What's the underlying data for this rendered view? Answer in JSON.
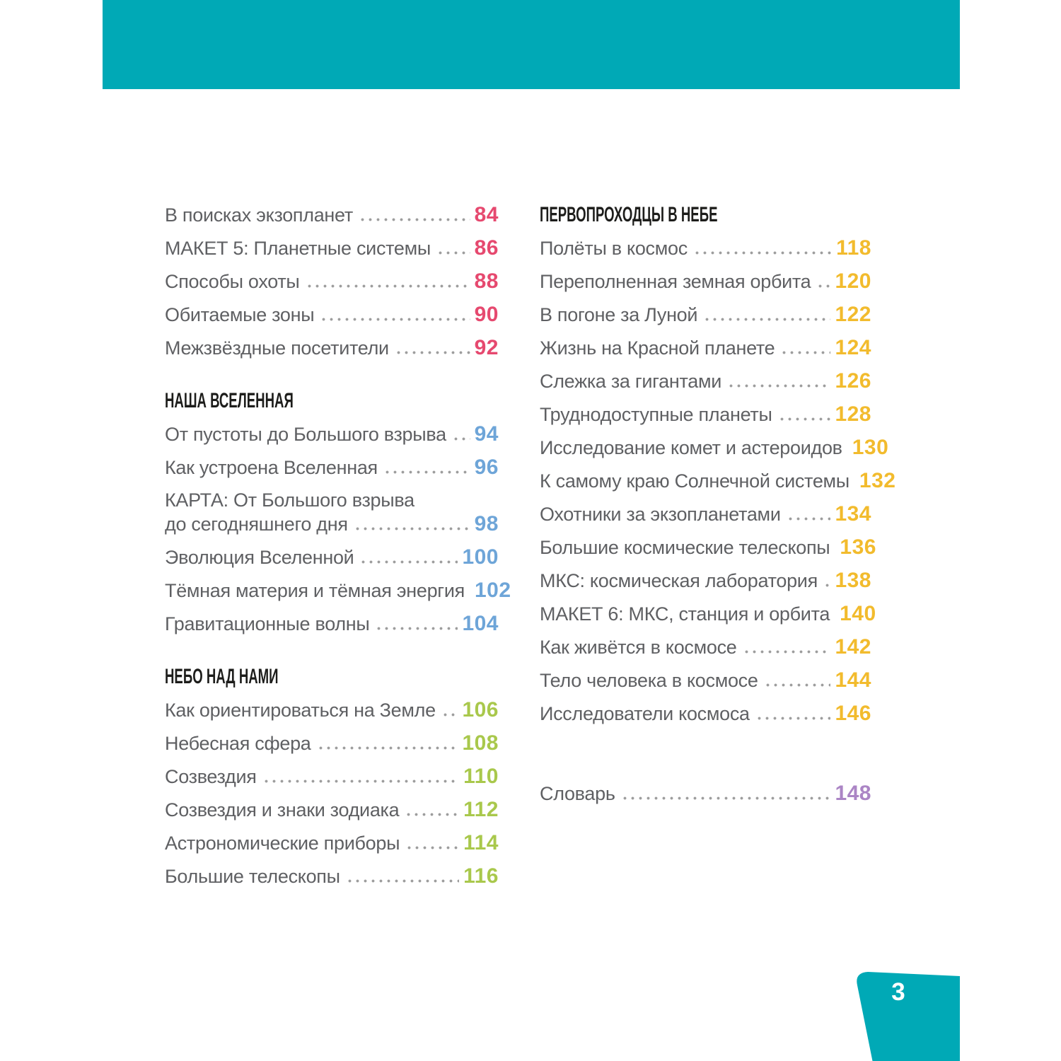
{
  "header": {
    "color": "#00a9b6"
  },
  "footer": {
    "page_number": "3",
    "tab_color": "#00a9b6"
  },
  "toc": {
    "columns": [
      {
        "blocks": [
          {
            "type": "entries",
            "color": "#e6496f",
            "items": [
              {
                "lines": [
                  "В поисках экзопланет"
                ],
                "page": "84"
              },
              {
                "lines": [
                  "МАКЕТ 5: Планетные системы"
                ],
                "page": "86"
              },
              {
                "lines": [
                  "Способы охоты"
                ],
                "page": "88"
              },
              {
                "lines": [
                  "Обитаемые зоны"
                ],
                "page": "90"
              },
              {
                "lines": [
                  "Межзвёздные посетители"
                ],
                "page": "92"
              }
            ]
          },
          {
            "type": "heading",
            "text": "НАША ВСЕЛЕННАЯ"
          },
          {
            "type": "entries",
            "color": "#6ea5d8",
            "items": [
              {
                "lines": [
                  "От пустоты до Большого взрыва"
                ],
                "page": "94"
              },
              {
                "lines": [
                  "Как устроена Вселенная"
                ],
                "page": "96"
              },
              {
                "lines": [
                  "КАРТА: От Большого взрыва",
                  "до сегодняшнего дня"
                ],
                "page": "98"
              },
              {
                "lines": [
                  "Эволюция Вселенной"
                ],
                "page": "100"
              },
              {
                "lines": [
                  "Тёмная материя и тёмная энергия"
                ],
                "page": "102"
              },
              {
                "lines": [
                  "Гравитационные волны"
                ],
                "page": "104"
              }
            ]
          },
          {
            "type": "heading",
            "text": "НЕБО НАД НАМИ"
          },
          {
            "type": "entries",
            "color": "#a9c84c",
            "items": [
              {
                "lines": [
                  "Как ориентироваться на Земле"
                ],
                "page": "106"
              },
              {
                "lines": [
                  "Небесная сфера"
                ],
                "page": "108"
              },
              {
                "lines": [
                  "Созвездия"
                ],
                "page": "110"
              },
              {
                "lines": [
                  "Созвездия и знаки зодиака"
                ],
                "page": "112"
              },
              {
                "lines": [
                  "Астрономические приборы"
                ],
                "page": "114"
              },
              {
                "lines": [
                  "Большие телескопы"
                ],
                "page": "116"
              }
            ]
          }
        ]
      },
      {
        "blocks": [
          {
            "type": "heading",
            "text": "ПЕРВОПРОХОДЦЫ В НЕБЕ"
          },
          {
            "type": "entries",
            "color": "#f2bb2d",
            "items": [
              {
                "lines": [
                  "Полёты в космос"
                ],
                "page": "118"
              },
              {
                "lines": [
                  "Переполненная земная орбита"
                ],
                "page": "120"
              },
              {
                "lines": [
                  "В погоне за Луной"
                ],
                "page": "122"
              },
              {
                "lines": [
                  "Жизнь на Красной планете"
                ],
                "page": "124"
              },
              {
                "lines": [
                  "Слежка за гигантами"
                ],
                "page": "126"
              },
              {
                "lines": [
                  "Труднодоступные планеты"
                ],
                "page": "128"
              },
              {
                "lines": [
                  "Исследование комет и астероидов"
                ],
                "page": "130"
              },
              {
                "lines": [
                  "К самому краю Солнечной системы"
                ],
                "page": "132"
              },
              {
                "lines": [
                  "Охотники за экзопланетами"
                ],
                "page": "134"
              },
              {
                "lines": [
                  "Большие космические телескопы"
                ],
                "page": "136"
              },
              {
                "lines": [
                  "МКС: космическая лаборатория"
                ],
                "page": "138"
              },
              {
                "lines": [
                  "МАКЕТ 6: МКС, станция и орбита"
                ],
                "page": "140"
              },
              {
                "lines": [
                  "Как живётся в космосе"
                ],
                "page": "142"
              },
              {
                "lines": [
                  "Тело человека в космосе"
                ],
                "page": "144"
              },
              {
                "lines": [
                  "Исследователи космоса"
                ],
                "page": "146"
              }
            ]
          },
          {
            "type": "spacer",
            "height": 66
          },
          {
            "type": "entries",
            "color": "#ab85c5",
            "items": [
              {
                "lines": [
                  "Словарь"
                ],
                "page": "148"
              }
            ]
          }
        ]
      }
    ]
  }
}
